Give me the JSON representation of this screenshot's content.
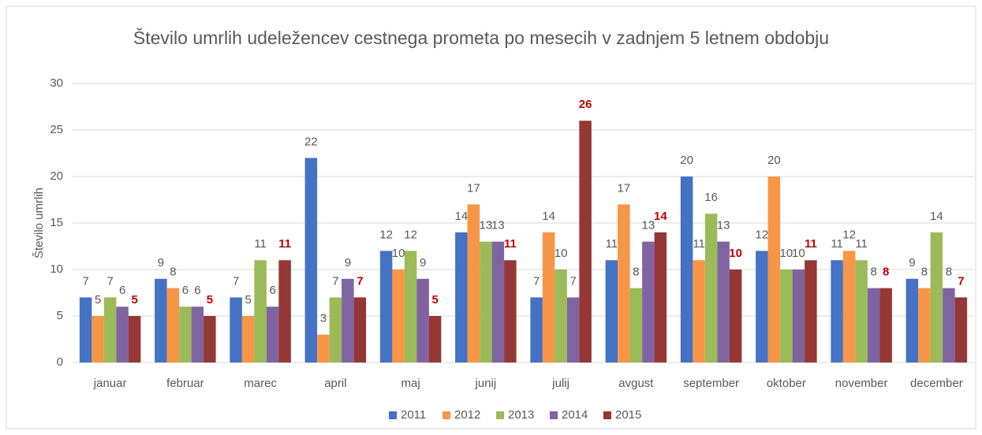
{
  "chart_data": {
    "type": "bar",
    "title": "Število umrlih udeležencev cestnega prometa po mesecih v zadnjem 5 letnem obdobju",
    "y_label": "Število umrlih",
    "categories": [
      "januar",
      "februar",
      "marec",
      "april",
      "maj",
      "junij",
      "julij",
      "avgust",
      "september",
      "oktober",
      "november",
      "december"
    ],
    "series": [
      {
        "name": "2011",
        "color": "#4472c4",
        "label_color": "#595959",
        "values": [
          7,
          9,
          7,
          22,
          12,
          14,
          7,
          11,
          20,
          12,
          11,
          9
        ]
      },
      {
        "name": "2012",
        "color": "#f79646",
        "label_color": "#595959",
        "values": [
          5,
          8,
          5,
          3,
          10,
          17,
          14,
          17,
          11,
          20,
          12,
          8
        ]
      },
      {
        "name": "2013",
        "color": "#9bbb59",
        "label_color": "#595959",
        "values": [
          7,
          6,
          11,
          7,
          12,
          13,
          10,
          8,
          16,
          10,
          11,
          14
        ]
      },
      {
        "name": "2014",
        "color": "#8064a2",
        "label_color": "#595959",
        "values": [
          6,
          6,
          6,
          9,
          9,
          13,
          7,
          13,
          13,
          10,
          8,
          8
        ]
      },
      {
        "name": "2015",
        "color": "#953735",
        "label_color": "#c00000",
        "values": [
          5,
          5,
          11,
          7,
          5,
          11,
          26,
          14,
          10,
          11,
          8,
          7
        ]
      }
    ],
    "ylim": [
      0,
      30
    ],
    "yticks": [
      0,
      5,
      10,
      15,
      20,
      25,
      30
    ],
    "grid": true,
    "legend": "bottom"
  }
}
